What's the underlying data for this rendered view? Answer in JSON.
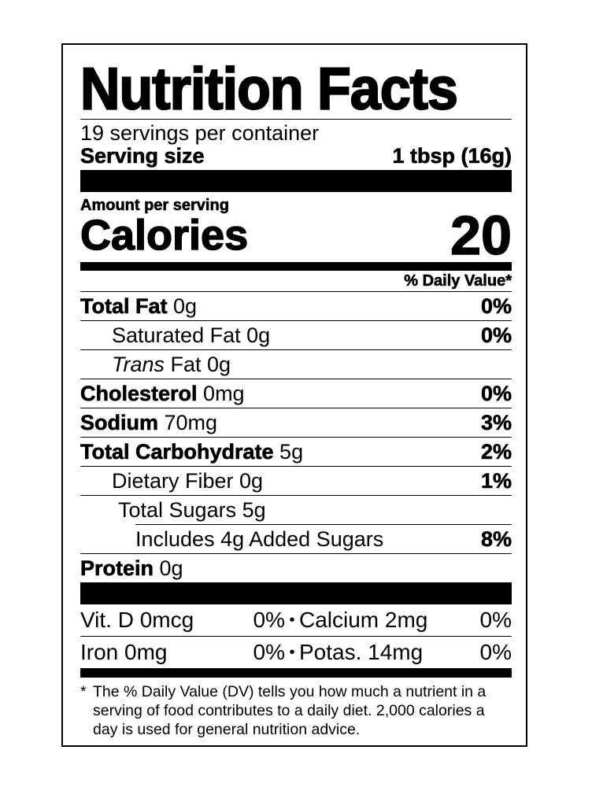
{
  "title": "Nutrition Facts",
  "servings_per_container": "19 servings per container",
  "serving_size": {
    "label": "Serving size",
    "value": "1 tbsp (16g)"
  },
  "amount_per_serving": "Amount per serving",
  "calories": {
    "label": "Calories",
    "value": "20"
  },
  "daily_value_header": "% Daily Value*",
  "nutrients": [
    {
      "name": "Total Fat",
      "amount": "0g",
      "dv": "0%"
    },
    {
      "name": "Saturated Fat 0g",
      "dv": "0%"
    },
    {
      "name_italic": "Trans",
      "name": " Fat 0g",
      "dv": ""
    },
    {
      "name": "Cholesterol",
      "amount": "0mg",
      "dv": "0%"
    },
    {
      "name": "Sodium",
      "amount": "70mg",
      "dv": "3%"
    },
    {
      "name": "Total Carbohydrate",
      "amount": "5g",
      "dv": "2%"
    },
    {
      "name": "Dietary Fiber 0g",
      "dv": "1%"
    },
    {
      "name": "Total Sugars 5g",
      "dv": ""
    },
    {
      "name": "Includes 4g Added Sugars",
      "dv": "8%"
    },
    {
      "name": "Protein",
      "amount": "0g",
      "dv": ""
    }
  ],
  "micros": [
    {
      "a": "Vit. D 0mcg",
      "a_dv": "0%",
      "b": "Calcium 2mg",
      "b_dv": "0%"
    },
    {
      "a": "Iron 0mg",
      "a_dv": "0%",
      "b": "Potas. 14mg",
      "b_dv": "0%"
    }
  ],
  "bullet": "•",
  "footnote": {
    "star": "*",
    "text": "The % Daily Value (DV) tells you how much a nutrient in a serving of food contributes to a daily diet. 2,000 calories a day is used for general nutrition advice."
  }
}
